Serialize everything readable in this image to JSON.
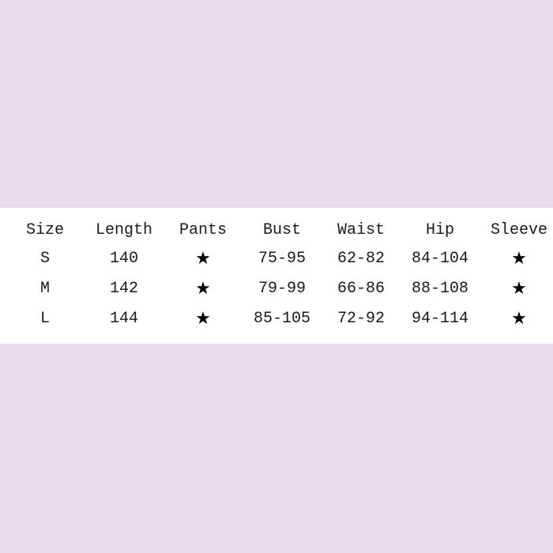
{
  "colors": {
    "background": "#e7dcec",
    "table_background": "#ffffff",
    "text": "#1a1a1a"
  },
  "table": {
    "headers": [
      "Size",
      "Length",
      "Pants",
      "Bust",
      "Waist",
      "Hip",
      "Sleeve"
    ],
    "rows": [
      [
        "S",
        "140",
        "★",
        "75-95",
        "62-82",
        "84-104",
        "★"
      ],
      [
        "M",
        "142",
        "★",
        "79-99",
        "66-86",
        "88-108",
        "★"
      ],
      [
        "L",
        "144",
        "★",
        "85-105",
        "72-92",
        "94-114",
        "★"
      ]
    ]
  }
}
